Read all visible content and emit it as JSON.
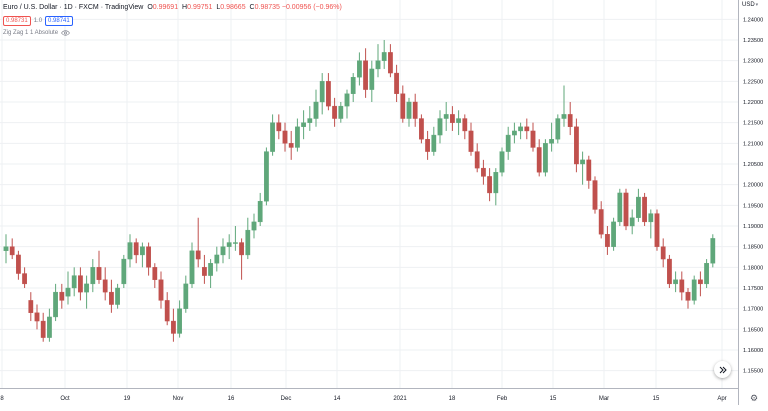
{
  "header": {
    "symbol": "Euro / U.S. Dollar",
    "interval": "1D",
    "exchange": "FXCM",
    "source": "TradingView",
    "ohlc": [
      {
        "label": "O",
        "value": "0.99691"
      },
      {
        "label": "H",
        "value": "0.99751"
      },
      {
        "label": "L",
        "value": "0.98665"
      },
      {
        "label": "C",
        "value": "0.98735"
      }
    ],
    "change": "−0.00956 (−0.96%)"
  },
  "bid_box": "0.98731",
  "spread": "1.0",
  "ask_box": "0.98741",
  "indicator": {
    "name": "Zig Zag 1 1 Absolute",
    "visibility_icon": "eye-icon"
  },
  "currency": "USD",
  "settings_icon": "gear-icon",
  "scroll_icon": "scroll-to-realtime-icon",
  "colors": {
    "up": "#26a69a",
    "up_candle": "#5fa77a",
    "down": "#ef5350",
    "down_candle": "#c0504d",
    "grid": "#eef0f3",
    "axis_text": "#131722"
  },
  "chart_data": {
    "type": "candlestick",
    "x_ticks": [
      "8",
      "Oct",
      "19",
      "Nov",
      "16",
      "Dec",
      "14",
      "2021",
      "18",
      "Feb",
      "15",
      "Mar",
      "15",
      "Apr"
    ],
    "y_ticks": [
      "1.24000",
      "1.23500",
      "1.23000",
      "1.22500",
      "1.22000",
      "1.21500",
      "1.21000",
      "1.20500",
      "1.20000",
      "1.19500",
      "1.19000",
      "1.18500",
      "1.18000",
      "1.17500",
      "1.17000",
      "1.16500",
      "1.16000",
      "1.15500"
    ],
    "ylim": [
      1.1525,
      1.2425
    ],
    "grid": true,
    "series": {
      "ohlc": [
        [
          1.184,
          1.188,
          1.181,
          1.185
        ],
        [
          1.185,
          1.187,
          1.182,
          1.183
        ],
        [
          1.183,
          1.184,
          1.177,
          1.1785
        ],
        [
          1.1785,
          1.18,
          1.175,
          1.176
        ],
        [
          1.172,
          1.174,
          1.167,
          1.169
        ],
        [
          1.169,
          1.171,
          1.165,
          1.167
        ],
        [
          1.167,
          1.169,
          1.162,
          1.163
        ],
        [
          1.163,
          1.17,
          1.162,
          1.168
        ],
        [
          1.168,
          1.176,
          1.167,
          1.174
        ],
        [
          1.174,
          1.176,
          1.17,
          1.172
        ],
        [
          1.173,
          1.179,
          1.171,
          1.175
        ],
        [
          1.175,
          1.18,
          1.173,
          1.178
        ],
        [
          1.178,
          1.18,
          1.172,
          1.174
        ],
        [
          1.174,
          1.178,
          1.17,
          1.176
        ],
        [
          1.176,
          1.182,
          1.174,
          1.18
        ],
        [
          1.18,
          1.184,
          1.176,
          1.177
        ],
        [
          1.177,
          1.18,
          1.172,
          1.174
        ],
        [
          1.174,
          1.177,
          1.169,
          1.171
        ],
        [
          1.171,
          1.176,
          1.17,
          1.175
        ],
        [
          1.176,
          1.183,
          1.175,
          1.182
        ],
        [
          1.182,
          1.188,
          1.18,
          1.186
        ],
        [
          1.186,
          1.187,
          1.181,
          1.183
        ],
        [
          1.183,
          1.186,
          1.18,
          1.185
        ],
        [
          1.185,
          1.186,
          1.178,
          1.18
        ],
        [
          1.18,
          1.181,
          1.175,
          1.177
        ],
        [
          1.177,
          1.179,
          1.17,
          1.172
        ],
        [
          1.172,
          1.174,
          1.166,
          1.167
        ],
        [
          1.167,
          1.17,
          1.162,
          1.164
        ],
        [
          1.164,
          1.172,
          1.163,
          1.17
        ],
        [
          1.17,
          1.178,
          1.169,
          1.176
        ],
        [
          1.176,
          1.186,
          1.175,
          1.184
        ],
        [
          1.184,
          1.192,
          1.18,
          1.182
        ],
        [
          1.18,
          1.183,
          1.176,
          1.178
        ],
        [
          1.178,
          1.182,
          1.175,
          1.181
        ],
        [
          1.181,
          1.185,
          1.179,
          1.183
        ],
        [
          1.183,
          1.187,
          1.181,
          1.185
        ],
        [
          1.185,
          1.188,
          1.182,
          1.186
        ],
        [
          1.186,
          1.19,
          1.184,
          1.186
        ],
        [
          1.186,
          1.187,
          1.177,
          1.183
        ],
        [
          1.183,
          1.192,
          1.182,
          1.189
        ],
        [
          1.189,
          1.193,
          1.187,
          1.191
        ],
        [
          1.191,
          1.198,
          1.19,
          1.196
        ],
        [
          1.196,
          1.209,
          1.195,
          1.208
        ],
        [
          1.208,
          1.217,
          1.207,
          1.215
        ],
        [
          1.215,
          1.217,
          1.211,
          1.213
        ],
        [
          1.213,
          1.215,
          1.208,
          1.21
        ],
        [
          1.21,
          1.213,
          1.206,
          1.209
        ],
        [
          1.209,
          1.216,
          1.208,
          1.214
        ],
        [
          1.214,
          1.218,
          1.211,
          1.215
        ],
        [
          1.215,
          1.219,
          1.213,
          1.216
        ],
        [
          1.216,
          1.223,
          1.214,
          1.22
        ],
        [
          1.22,
          1.227,
          1.217,
          1.225
        ],
        [
          1.225,
          1.227,
          1.218,
          1.219
        ],
        [
          1.219,
          1.221,
          1.214,
          1.216
        ],
        [
          1.216,
          1.22,
          1.215,
          1.219
        ],
        [
          1.219,
          1.223,
          1.216,
          1.222
        ],
        [
          1.222,
          1.227,
          1.22,
          1.226
        ],
        [
          1.226,
          1.232,
          1.224,
          1.23
        ],
        [
          1.23,
          1.233,
          1.221,
          1.223
        ],
        [
          1.223,
          1.23,
          1.22,
          1.228
        ],
        [
          1.228,
          1.234,
          1.226,
          1.23
        ],
        [
          1.23,
          1.235,
          1.228,
          1.232
        ],
        [
          1.232,
          1.234,
          1.226,
          1.227
        ],
        [
          1.227,
          1.229,
          1.22,
          1.222
        ],
        [
          1.222,
          1.224,
          1.215,
          1.216
        ],
        [
          1.216,
          1.221,
          1.214,
          1.22
        ],
        [
          1.22,
          1.222,
          1.214,
          1.216
        ],
        [
          1.216,
          1.217,
          1.21,
          1.211
        ],
        [
          1.211,
          1.213,
          1.206,
          1.208
        ],
        [
          1.208,
          1.214,
          1.207,
          1.212
        ],
        [
          1.212,
          1.218,
          1.21,
          1.216
        ],
        [
          1.216,
          1.22,
          1.213,
          1.217
        ],
        [
          1.217,
          1.219,
          1.213,
          1.215
        ],
        [
          1.215,
          1.218,
          1.212,
          1.216
        ],
        [
          1.216,
          1.217,
          1.211,
          1.213
        ],
        [
          1.213,
          1.215,
          1.207,
          1.208
        ],
        [
          1.208,
          1.21,
          1.203,
          1.204
        ],
        [
          1.204,
          1.206,
          1.2,
          1.202
        ],
        [
          1.202,
          1.204,
          1.196,
          1.198
        ],
        [
          1.198,
          1.204,
          1.195,
          1.203
        ],
        [
          1.203,
          1.209,
          1.202,
          1.208
        ],
        [
          1.208,
          1.214,
          1.206,
          1.212
        ],
        [
          1.212,
          1.215,
          1.21,
          1.213
        ],
        [
          1.213,
          1.215,
          1.211,
          1.214
        ],
        [
          1.214,
          1.216,
          1.211,
          1.213
        ],
        [
          1.213,
          1.215,
          1.208,
          1.209
        ],
        [
          1.209,
          1.211,
          1.202,
          1.203
        ],
        [
          1.203,
          1.211,
          1.202,
          1.21
        ],
        [
          1.21,
          1.215,
          1.208,
          1.211
        ],
        [
          1.211,
          1.217,
          1.21,
          1.216
        ],
        [
          1.216,
          1.224,
          1.214,
          1.217
        ],
        [
          1.217,
          1.22,
          1.212,
          1.214
        ],
        [
          1.214,
          1.216,
          1.203,
          1.205
        ],
        [
          1.205,
          1.208,
          1.2,
          1.206
        ],
        [
          1.206,
          1.207,
          1.199,
          1.201
        ],
        [
          1.201,
          1.202,
          1.193,
          1.194
        ],
        [
          1.194,
          1.196,
          1.187,
          1.188
        ],
        [
          1.188,
          1.19,
          1.183,
          1.185
        ],
        [
          1.185,
          1.192,
          1.184,
          1.191
        ],
        [
          1.191,
          1.199,
          1.19,
          1.198
        ],
        [
          1.198,
          1.199,
          1.189,
          1.19
        ],
        [
          1.19,
          1.194,
          1.188,
          1.192
        ],
        [
          1.192,
          1.199,
          1.191,
          1.197
        ],
        [
          1.197,
          1.198,
          1.19,
          1.191
        ],
        [
          1.191,
          1.194,
          1.187,
          1.193
        ],
        [
          1.193,
          1.194,
          1.184,
          1.185
        ],
        [
          1.185,
          1.187,
          1.18,
          1.182
        ],
        [
          1.182,
          1.183,
          1.175,
          1.176
        ],
        [
          1.176,
          1.179,
          1.174,
          1.177
        ],
        [
          1.177,
          1.179,
          1.172,
          1.174
        ],
        [
          1.174,
          1.175,
          1.17,
          1.172
        ],
        [
          1.172,
          1.178,
          1.171,
          1.177
        ],
        [
          1.177,
          1.179,
          1.173,
          1.176
        ],
        [
          1.176,
          1.182,
          1.175,
          1.181
        ],
        [
          1.181,
          1.188,
          1.18,
          1.187
        ]
      ]
    }
  }
}
